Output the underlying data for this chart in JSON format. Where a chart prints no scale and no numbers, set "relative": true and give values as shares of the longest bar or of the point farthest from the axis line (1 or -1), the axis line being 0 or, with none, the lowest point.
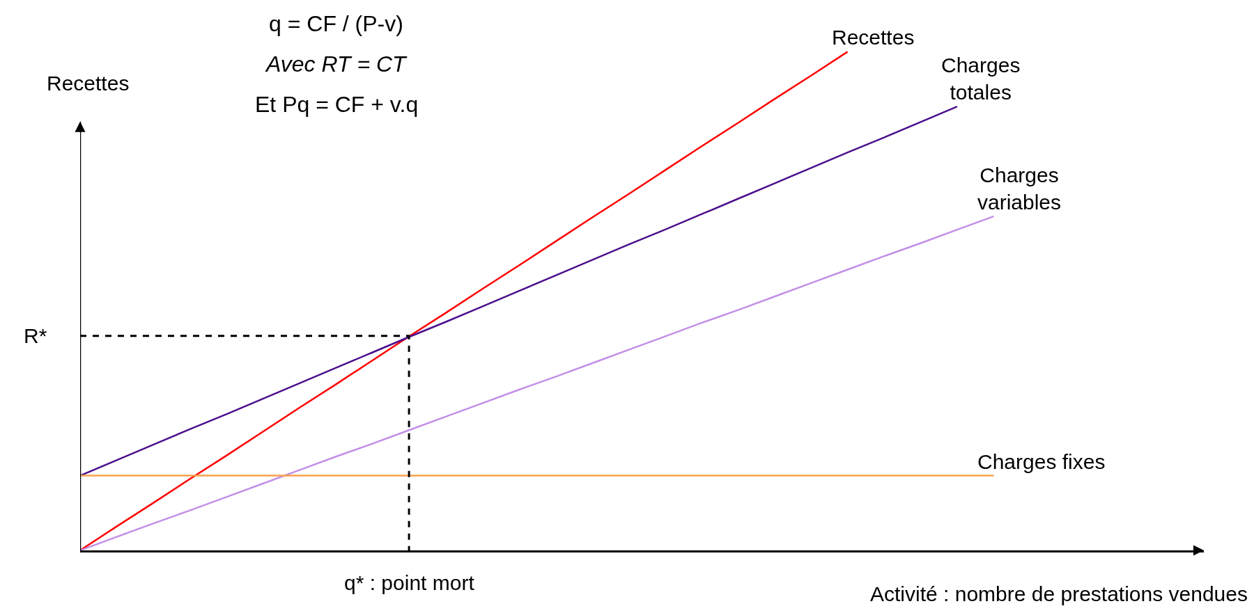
{
  "chart_data": {
    "type": "line",
    "relative": true,
    "legend": false,
    "marker": "none",
    "line_style": "solid",
    "xlabel": "Activité : nombre de prestations vendues",
    "ylabel": "Recettes",
    "categories": [
      null,
      null,
      null,
      null,
      null,
      null,
      null,
      null,
      null,
      null,
      null,
      null,
      null,
      null,
      null,
      null,
      null,
      null,
      null,
      null,
      null,
      null,
      null,
      null,
      null,
      null
    ],
    "series": [
      {
        "name": "Recettes",
        "color": "#ff0000",
        "values": [
          0,
          0.048,
          0.095,
          0.143,
          0.19,
          0.238,
          0.286,
          0.333,
          0.381,
          0.429,
          0.476,
          0.524,
          0.571,
          0.619,
          0.667,
          0.714,
          0.762,
          0.81,
          0.857,
          0.905,
          0.952,
          1,
          null,
          null,
          null,
          null
        ]
      },
      {
        "name": "Charges totales",
        "color": "#4b0f8c",
        "values": [
          0.15,
          0.181,
          0.212,
          0.243,
          0.273,
          0.304,
          0.335,
          0.366,
          0.397,
          0.428,
          0.458,
          0.489,
          0.52,
          0.551,
          0.582,
          0.613,
          0.643,
          0.674,
          0.705,
          0.736,
          0.767,
          0.798,
          0.828,
          0.859,
          0.89,
          null
        ]
      },
      {
        "name": "Charges variables",
        "color": "#c38ee8",
        "values": [
          0,
          0.027,
          0.054,
          0.08,
          0.107,
          0.134,
          0.161,
          0.188,
          0.214,
          0.241,
          0.268,
          0.295,
          0.322,
          0.348,
          0.375,
          0.402,
          0.429,
          0.456,
          0.482,
          0.509,
          0.536,
          0.563,
          0.59,
          0.616,
          0.643,
          0.67
        ]
      },
      {
        "name": "Charges fixes",
        "color": "#f9a04b",
        "values": [
          0.15,
          0.15,
          0.15,
          0.15,
          0.15,
          0.15,
          0.15,
          0.15,
          0.15,
          0.15,
          0.15,
          0.15,
          0.15,
          0.15,
          0.15,
          0.15,
          0.15,
          0.15,
          0.15,
          0.15,
          0.15,
          0.15,
          0.15,
          0.15,
          0.15,
          0.15
        ]
      }
    ],
    "ref_lines": [
      {
        "axis": "y",
        "value": 0.43,
        "label": "R*",
        "color": "#000000",
        "line_style": "dashed"
      }
    ],
    "annotations": [
      "q = CF / (P-v)",
      "Avec RT = CT",
      "Et Pq = CF + v.q",
      {
        "text": "q* : point mort",
        "y": 0
      }
    ]
  }
}
